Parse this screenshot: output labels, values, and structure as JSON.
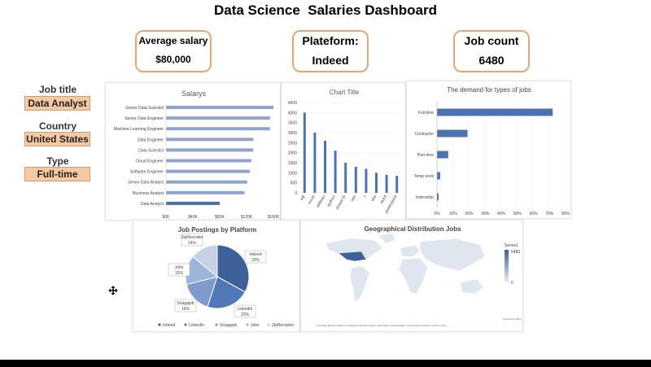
{
  "dashboard": {
    "title": "Data Science  Salaries Dashboard",
    "kpis": [
      {
        "label": "Average salary",
        "value": "$80,000"
      },
      {
        "label": "Plateform:",
        "value": "Indeed"
      },
      {
        "label": "Job count",
        "value": "6480"
      }
    ],
    "slicers": [
      {
        "label": "Job title",
        "value": "Data Analyst"
      },
      {
        "label": "Country",
        "value": "United States"
      },
      {
        "label": "Type",
        "value": "Full-time"
      }
    ],
    "accent_color": "#e4a874",
    "slicer_fill": "#f6c9a2"
  },
  "chart_data": [
    {
      "type": "bar",
      "orientation": "horizontal",
      "title": "Salarys",
      "categories": [
        "Senior Data Scientist",
        "Senior Data Engineer",
        "Machine Learning Engineer",
        "Data Engineer",
        "Data Scientist",
        "Cloud Engineer",
        "Software Engineer",
        "Senior Data Analyst",
        "Business Analyst",
        "Data Analyst"
      ],
      "values": [
        160000,
        155000,
        155000,
        130000,
        130000,
        127000,
        125000,
        121000,
        117000,
        80000
      ],
      "xticks": [
        "$0K",
        "$40K",
        "$80K",
        "$120K",
        "$160K"
      ],
      "xlim": [
        0,
        160000
      ],
      "highlight": "Data Analyst",
      "color": "#8ea4cc",
      "highlight_color": "#4a6fa5"
    },
    {
      "type": "bar",
      "title": "Chart Title",
      "categories": [
        "sql",
        "excel",
        "tableau",
        "python",
        "power bi",
        "sas",
        "r",
        "vba",
        "word",
        "powerpoint"
      ],
      "values": [
        4000,
        3000,
        2600,
        2100,
        1500,
        1300,
        1200,
        1000,
        900,
        850
      ],
      "yticks": [
        "0",
        "500",
        "1000",
        "1500",
        "2000",
        "2500",
        "3000",
        "3500",
        "4000",
        "4500"
      ],
      "ylim": [
        0,
        4500
      ],
      "color": "#4a73b0"
    },
    {
      "type": "bar",
      "orientation": "horizontal",
      "title": "The demand for types of jobs",
      "categories": [
        "Full-time",
        "Contractor",
        "Part-time",
        "Temp work",
        "Internship"
      ],
      "values": [
        72,
        19,
        7,
        2,
        1
      ],
      "xticks": [
        "0%",
        "10%",
        "20%",
        "30%",
        "40%",
        "50%",
        "60%",
        "70%",
        "80%"
      ],
      "xlim": [
        0,
        80
      ],
      "color": "#4a73b0"
    },
    {
      "type": "pie",
      "title": "Job Postings by Platform",
      "slices": [
        {
          "label": "Indeed",
          "pct": "33%",
          "value": 33,
          "color": "#3d6199"
        },
        {
          "label": "LinkedIn",
          "pct": "22%",
          "value": 22,
          "color": "#5279b7"
        },
        {
          "label": "Snagajob",
          "pct": "16%",
          "value": 16,
          "color": "#7f9bcb"
        },
        {
          "label": "Jobs",
          "pct": "15%",
          "value": 15,
          "color": "#9eb4d8"
        },
        {
          "label": "ZipRecruiter",
          "pct": "14%",
          "value": 14,
          "color": "#c4d1e6"
        }
      ]
    },
    {
      "type": "map",
      "title": "Geographical Distribution Jobs",
      "legend_title": "Series1",
      "legend_max": "6480",
      "legend_min": "0",
      "highlighted_region": "United States",
      "attribution": "© Australian Bureau of Statistics, GeoNames, Microsoft, Navinfo, Open Places, OpenStreetMap, Overture Maps Fundation, TomTom, Zenrin",
      "powered_by": "Powered by Bing"
    }
  ]
}
